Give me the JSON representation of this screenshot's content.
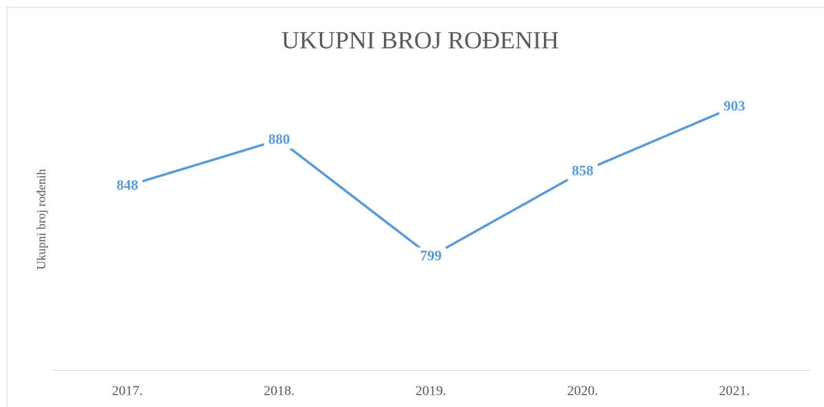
{
  "chart_data": {
    "type": "line",
    "title": "UKUPNI BROJ ROĐENIH",
    "y_label": "Ukupni broj rođenih",
    "categories": [
      "2017.",
      "2018.",
      "2019.",
      "2020.",
      "2021."
    ],
    "series": [
      {
        "name": "Ukupni broj rođenih",
        "color": "#5b9bd5",
        "values": [
          848,
          880,
          799,
          858,
          903
        ]
      }
    ],
    "ylim": [
      720,
      920
    ]
  }
}
